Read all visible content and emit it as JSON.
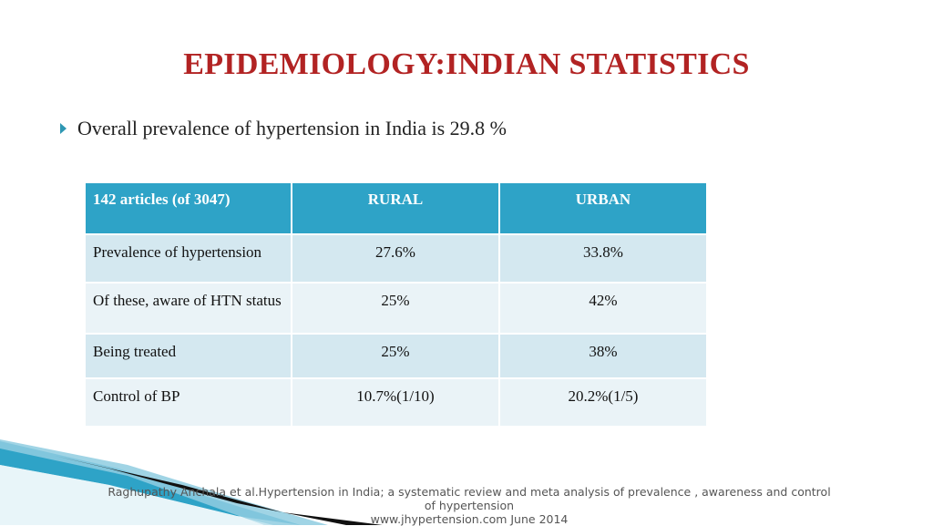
{
  "title": "EPIDEMIOLOGY:INDIAN STATISTICS",
  "bullet": {
    "icon": "triangle-bullet-icon",
    "text": "Overall prevalence of hypertension in India is 29.8 %"
  },
  "table": {
    "headers": [
      "142 articles (of 3047)",
      "RURAL",
      "URBAN"
    ],
    "rows": [
      {
        "label": "Prevalence of hypertension",
        "rural": "27.6%",
        "urban": "33.8%"
      },
      {
        "label": "Of these,  aware of HTN status",
        "rural": "25%",
        "urban": "42%"
      },
      {
        "label": "Being treated",
        "rural": "25%",
        "urban": "38%"
      },
      {
        "label": "Control of BP",
        "rural": "10.7%(1/10)",
        "urban": "20.2%(1/5)"
      }
    ]
  },
  "footnote": {
    "line1": "Raghupathy Anchala et al.Hypertension in India; a systematic review and meta analysis of prevalence , awareness and control",
    "line2": "of hypertension",
    "line3": "www.jhypertension.com June 2014"
  },
  "colors": {
    "title": "#b22323",
    "header_bg": "#2ea3c7",
    "row_dark": "#d4e8f0",
    "row_light": "#eaf3f7",
    "bullet": "#2e97b3"
  }
}
